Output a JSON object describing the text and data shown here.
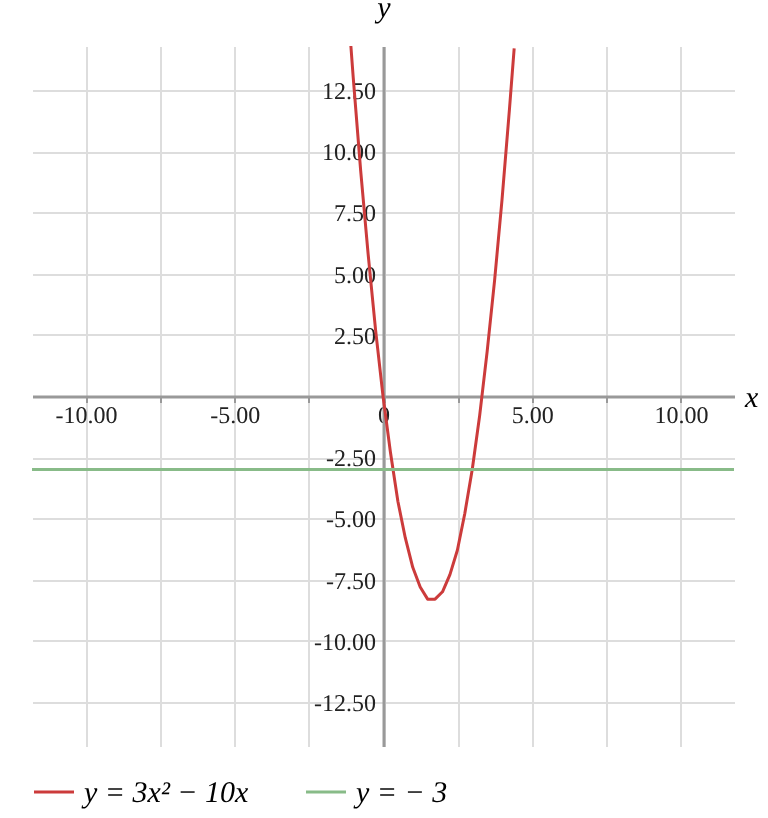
{
  "chart_data": {
    "type": "line",
    "xlabel": "x",
    "ylabel": "y",
    "xlim": [
      -11.8,
      11.8
    ],
    "ylim": [
      -14.3,
      14.3
    ],
    "xticks": [
      {
        "value": -10,
        "label": "-10.00"
      },
      {
        "value": -7.5,
        "label": null
      },
      {
        "value": -5,
        "label": "-5.00"
      },
      {
        "value": -2.5,
        "label": null
      },
      {
        "value": 0,
        "label": "0"
      },
      {
        "value": 2.5,
        "label": null
      },
      {
        "value": 5,
        "label": "5.00"
      },
      {
        "value": 7.5,
        "label": null
      },
      {
        "value": 10,
        "label": "10.00"
      }
    ],
    "yticks": [
      {
        "value": -12.5,
        "label": "-12.50"
      },
      {
        "value": -10,
        "label": "-10.00"
      },
      {
        "value": -7.5,
        "label": "-7.50"
      },
      {
        "value": -5,
        "label": "-5.00"
      },
      {
        "value": -2.5,
        "label": "-2.50"
      },
      {
        "value": 0,
        "label": null
      },
      {
        "value": 2.5,
        "label": "2.50"
      },
      {
        "value": 5,
        "label": "5.00"
      },
      {
        "value": 7.5,
        "label": "7.50"
      },
      {
        "value": 10,
        "label": "10.00"
      },
      {
        "value": 12.5,
        "label": "12.50"
      }
    ],
    "grid": true,
    "legend": "bottom left",
    "marker": "none",
    "line_style": "solid",
    "series": [
      {
        "name": "y = 3x² − 10x",
        "color": "#cc3b3b",
        "x": [
          -1.08,
          -1,
          -0.75,
          -0.5,
          -0.25,
          0,
          0.25,
          0.5,
          0.75,
          1,
          1.25,
          1.5,
          1.67,
          1.75,
          2,
          2.25,
          2.5,
          2.75,
          3,
          3.25,
          3.5,
          3.75,
          4,
          4.25,
          4.41
        ],
        "values": [
          14.3,
          13,
          9.2,
          5.8,
          2.7,
          0,
          -2.3,
          -4.3,
          -5.8,
          -7,
          -7.8,
          -8.3,
          -8.3,
          -8.3,
          -8,
          -7.3,
          -6.3,
          -4.8,
          -3,
          -0.8,
          1.8,
          4.7,
          8,
          11.7,
          14.2
        ]
      },
      {
        "name": "y = − 3",
        "color": "#88bb88",
        "x": [
          -11.8,
          11.8
        ],
        "values": [
          -3,
          -3
        ]
      }
    ]
  }
}
